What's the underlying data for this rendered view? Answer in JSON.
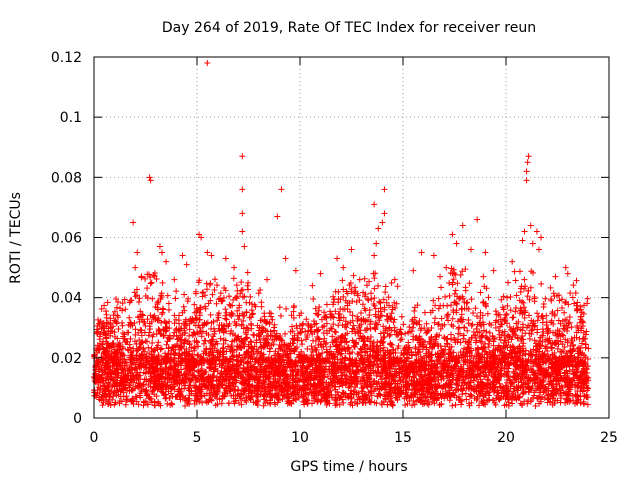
{
  "chart_data": {
    "type": "scatter",
    "title": "Day 264 of 2019, Rate Of TEC Index for receiver reun",
    "xlabel": "GPS time / hours",
    "ylabel": "ROTI / TECUs",
    "xlim": [
      0,
      25
    ],
    "ylim": [
      0,
      0.12
    ],
    "xticks": [
      0,
      5,
      10,
      15,
      20,
      25
    ],
    "xtick_labels": [
      "0",
      "5",
      "10",
      "15",
      "20",
      "25"
    ],
    "yticks": [
      0,
      0.02,
      0.04,
      0.06,
      0.08,
      0.1,
      0.12
    ],
    "ytick_labels": [
      "0",
      "0.02",
      "0.04",
      "0.06",
      "0.08",
      "0.1",
      "0.12"
    ],
    "grid": true,
    "marker": "+",
    "color": "#ff0000",
    "series": [
      {
        "name": "ROTI",
        "points": [
          [
            5.5,
            0.118
          ],
          [
            2.7,
            0.08
          ],
          [
            2.75,
            0.079
          ],
          [
            7.2,
            0.087
          ],
          [
            21.1,
            0.087
          ],
          [
            21.05,
            0.085
          ],
          [
            21.0,
            0.082
          ],
          [
            21.0,
            0.079
          ],
          [
            7.2,
            0.076
          ],
          [
            9.1,
            0.076
          ],
          [
            14.1,
            0.076
          ],
          [
            7.2,
            0.068
          ],
          [
            13.6,
            0.071
          ],
          [
            14.1,
            0.068
          ],
          [
            1.9,
            0.065
          ],
          [
            8.9,
            0.067
          ],
          [
            17.9,
            0.064
          ],
          [
            18.6,
            0.066
          ],
          [
            21.2,
            0.064
          ],
          [
            20.9,
            0.062
          ],
          [
            5.1,
            0.061
          ],
          [
            5.2,
            0.06
          ],
          [
            7.2,
            0.062
          ],
          [
            13.8,
            0.063
          ],
          [
            14.0,
            0.065
          ],
          [
            17.4,
            0.061
          ],
          [
            21.5,
            0.062
          ],
          [
            21.7,
            0.06
          ],
          [
            13.7,
            0.058
          ],
          [
            17.6,
            0.058
          ],
          [
            20.8,
            0.059
          ],
          [
            21.3,
            0.058
          ],
          [
            3.2,
            0.057
          ],
          [
            3.3,
            0.055
          ],
          [
            2.1,
            0.055
          ],
          [
            5.5,
            0.055
          ],
          [
            7.3,
            0.057
          ],
          [
            12.5,
            0.056
          ],
          [
            15.9,
            0.055
          ],
          [
            16.5,
            0.054
          ],
          [
            19.0,
            0.055
          ],
          [
            21.6,
            0.056
          ],
          [
            3.5,
            0.052
          ],
          [
            4.3,
            0.054
          ],
          [
            5.7,
            0.054
          ],
          [
            6.4,
            0.053
          ],
          [
            9.3,
            0.053
          ],
          [
            11.8,
            0.053
          ],
          [
            13.6,
            0.054
          ],
          [
            18.3,
            0.056
          ],
          [
            20.3,
            0.052
          ],
          [
            22.9,
            0.05
          ],
          [
            23.0,
            0.048
          ],
          [
            2.0,
            0.05
          ],
          [
            4.5,
            0.051
          ],
          [
            6.8,
            0.05
          ],
          [
            9.8,
            0.049
          ],
          [
            11.0,
            0.048
          ],
          [
            12.1,
            0.05
          ],
          [
            15.5,
            0.049
          ],
          [
            17.1,
            0.05
          ],
          [
            19.4,
            0.049
          ],
          [
            22.4,
            0.047
          ],
          [
            2.8,
            0.045
          ],
          [
            3.9,
            0.046
          ],
          [
            8.4,
            0.046
          ],
          [
            10.6,
            0.044
          ],
          [
            12.9,
            0.046
          ],
          [
            14.6,
            0.046
          ],
          [
            16.8,
            0.047
          ],
          [
            18.9,
            0.047
          ],
          [
            20.1,
            0.045
          ]
        ]
      }
    ]
  }
}
